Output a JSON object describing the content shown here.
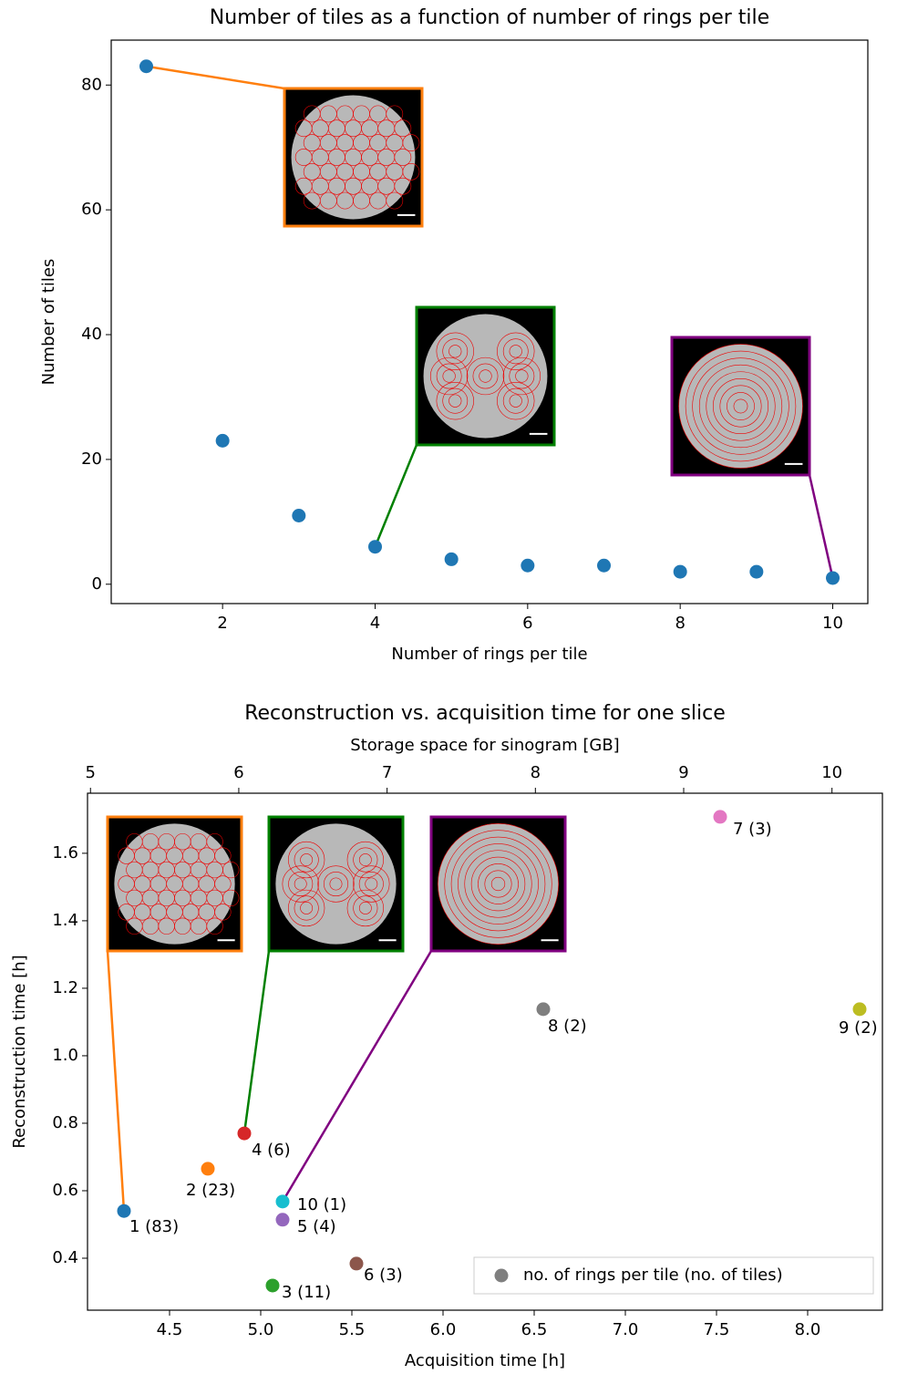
{
  "chart_data": [
    {
      "type": "scatter",
      "title": "Number of tiles as a function of number of rings per tile",
      "x_label": "Number of rings per tile",
      "y_label": "Number of tiles",
      "x": [
        1,
        2,
        3,
        4,
        5,
        6,
        7,
        8,
        9,
        10
      ],
      "values": [
        83,
        23,
        11,
        6,
        4,
        3,
        3,
        2,
        2,
        1
      ],
      "color": "#1f77b4",
      "xlim": [
        0.54,
        10.46
      ],
      "ylim": [
        -3.1,
        87.2
      ],
      "xticks": [
        2,
        4,
        6,
        8,
        10
      ],
      "yticks": [
        0,
        20,
        40,
        60,
        80
      ]
    },
    {
      "type": "scatter",
      "title": "Reconstruction vs. acquisition time for one slice",
      "x_label": "Acquisition time [h]",
      "y_label": "Reconstruction time [h]",
      "x2_label": "Storage space for sinogram [GB]",
      "x": [
        4.25,
        4.71,
        5.065,
        4.91,
        5.12,
        5.525,
        7.52,
        6.55,
        8.285,
        5.12
      ],
      "values": [
        0.54,
        0.665,
        0.319,
        0.77,
        0.514,
        0.384,
        1.708,
        1.138,
        1.138,
        0.568
      ],
      "point_labels": [
        "1 (83)",
        "2 (23)",
        "3 (11)",
        "4 (6)",
        "5 (4)",
        "6 (3)",
        "7 (3)",
        "8 (2)",
        "9 (2)",
        "10 (1)"
      ],
      "colors": [
        "#1f77b4",
        "#ff7f0e",
        "#2ca02c",
        "#d62728",
        "#9467bd",
        "#8c564b",
        "#e377c2",
        "#7f7f7f",
        "#bcbd22",
        "#17becf"
      ],
      "legend": "no. of rings per tile (no. of tiles)",
      "legend_color": "#7f7f7f",
      "legend_loc": "lower right",
      "xlim": [
        4.05,
        8.41
      ],
      "ylim": [
        0.246,
        1.778
      ],
      "x2lim": [
        4.98,
        10.34
      ],
      "xticks": [
        4.5,
        {
          "value": 5,
          "label": "5.0"
        },
        5.5,
        {
          "value": 6,
          "label": "6.0"
        },
        6.5,
        {
          "value": 7,
          "label": "7.0"
        },
        7.5,
        {
          "value": 8,
          "label": "8.0"
        }
      ],
      "yticks": [
        0.4,
        0.6,
        0.8,
        {
          "value": 1,
          "label": "1.0"
        },
        1.2,
        1.4,
        1.6
      ],
      "x2ticks": [
        5,
        6,
        7,
        8,
        9,
        10
      ]
    }
  ]
}
